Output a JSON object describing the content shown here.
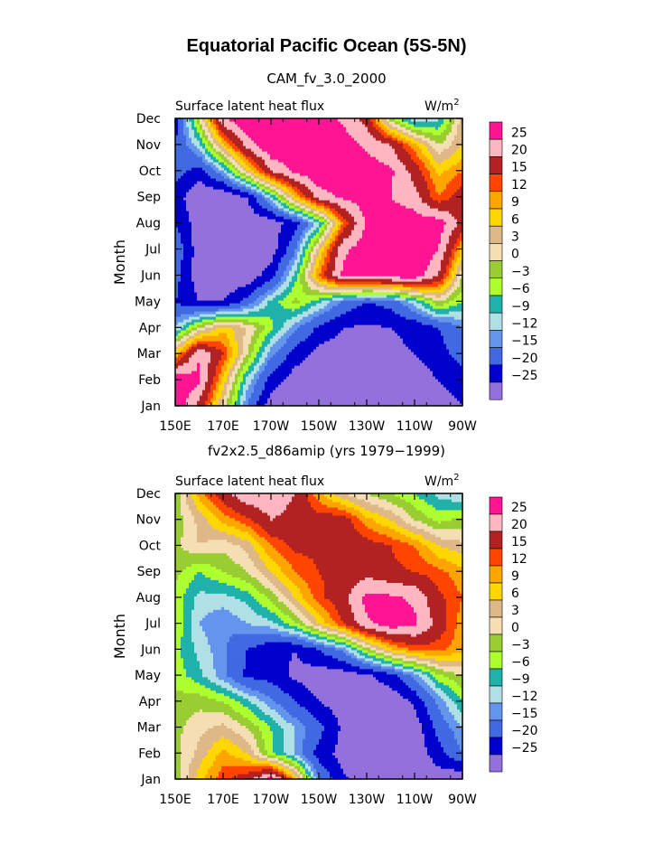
{
  "figure": {
    "title": "Equatorial Pacific Ocean (5S-5N)"
  },
  "chart_data": [
    {
      "type": "heatmap",
      "subtitle": "CAM_fv_3.0_2000",
      "title": "Surface latent heat flux",
      "units": "W/m",
      "units_superscript": "2",
      "ylabel": "Month",
      "xlabel": "",
      "x_ticks": [
        "150E",
        "170E",
        "170W",
        "150W",
        "130W",
        "110W",
        "90W"
      ],
      "y_ticks": [
        "Jan",
        "Feb",
        "Mar",
        "Apr",
        "May",
        "Jun",
        "Jul",
        "Aug",
        "Sep",
        "Oct",
        "Nov",
        "Dec"
      ],
      "xlim": [
        "150E",
        "90W"
      ],
      "ylim": [
        "Jan",
        "Dec"
      ],
      "legend_levels": [
        "25",
        "20",
        "15",
        "12",
        "9",
        "6",
        "3",
        "0",
        "−3",
        "−6",
        "−9",
        "−12",
        "−15",
        "−20",
        "−25"
      ],
      "field": {
        "x": [
          "150E",
          "160E",
          "170E",
          "180",
          "170W",
          "160W",
          "150W",
          "140W",
          "130W",
          "120W",
          "110W",
          "100W",
          "90W"
        ],
        "months": [
          "Jan",
          "Feb",
          "Mar",
          "Apr",
          "May",
          "Jun",
          "Jul",
          "Aug",
          "Sep",
          "Oct",
          "Nov",
          "Dec"
        ],
        "z": [
          [
            30,
            18,
            2,
            -15,
            -28,
            -32,
            -33,
            -32,
            -31,
            -30,
            -30,
            -28,
            -25
          ],
          [
            30,
            26,
            8,
            -10,
            -22,
            -28,
            -30,
            -30,
            -29,
            -28,
            -28,
            -25,
            -22
          ],
          [
            8,
            25,
            15,
            0,
            -14,
            -22,
            -27,
            -28,
            -27,
            -26,
            -25,
            -22,
            -18
          ],
          [
            -12,
            0,
            8,
            3,
            -5,
            -14,
            -21,
            -25,
            -26,
            -25,
            -24,
            -20,
            -15
          ],
          [
            -20,
            -25,
            -25,
            -18,
            -8,
            -2,
            -8,
            -16,
            -20,
            -18,
            -10,
            0,
            -6
          ],
          [
            -18,
            -28,
            -30,
            -29,
            -22,
            -8,
            12,
            26,
            28,
            28,
            28,
            20,
            0
          ],
          [
            -16,
            -28,
            -31,
            -30,
            -28,
            -16,
            5,
            24,
            28,
            30,
            30,
            25,
            8
          ],
          [
            -20,
            -28,
            -30,
            -29,
            -28,
            -22,
            -10,
            12,
            26,
            28,
            28,
            28,
            18
          ],
          [
            -22,
            -30,
            -30,
            -25,
            -10,
            8,
            22,
            26,
            28,
            25,
            22,
            12,
            18
          ],
          [
            -18,
            -22,
            -12,
            5,
            20,
            26,
            30,
            30,
            28,
            26,
            18,
            8,
            12
          ],
          [
            -20,
            -10,
            8,
            22,
            30,
            30,
            30,
            28,
            24,
            20,
            10,
            0,
            6
          ],
          [
            -22,
            0,
            24,
            30,
            30,
            30,
            28,
            24,
            18,
            -2,
            -12,
            -10,
            5
          ]
        ]
      }
    },
    {
      "type": "heatmap",
      "subtitle": "fv2x2.5_d86amip (yrs 1979−1999)",
      "title": "Surface latent heat flux",
      "units": "W/m",
      "units_superscript": "2",
      "ylabel": "Month",
      "xlabel": "",
      "x_ticks": [
        "150E",
        "170E",
        "170W",
        "150W",
        "130W",
        "110W",
        "90W"
      ],
      "y_ticks": [
        "Jan",
        "Feb",
        "Mar",
        "Apr",
        "May",
        "Jun",
        "Jul",
        "Aug",
        "Sep",
        "Oct",
        "Nov",
        "Dec"
      ],
      "xlim": [
        "150E",
        "90W"
      ],
      "ylim": [
        "Jan",
        "Dec"
      ],
      "legend_levels": [
        "25",
        "20",
        "15",
        "12",
        "9",
        "6",
        "3",
        "0",
        "−3",
        "−6",
        "−9",
        "−12",
        "−15",
        "−20",
        "−25"
      ],
      "field": {
        "x": [
          "150E",
          "160E",
          "170E",
          "180",
          "170W",
          "160W",
          "150W",
          "140W",
          "130W",
          "120W",
          "110W",
          "100W",
          "90W"
        ],
        "months": [
          "Jan",
          "Feb",
          "Mar",
          "Apr",
          "May",
          "Jun",
          "Jul",
          "Aug",
          "Sep",
          "Oct",
          "Nov",
          "Dec"
        ],
        "z": [
          [
            -2,
            8,
            14,
            18,
            28,
            10,
            -15,
            -24,
            -27,
            -29,
            -30,
            -28,
            -30
          ],
          [
            -1,
            4,
            10,
            6,
            -5,
            -12,
            -22,
            -27,
            -30,
            -30,
            -29,
            -22,
            -15
          ],
          [
            -1,
            2,
            4,
            0,
            -6,
            -12,
            -18,
            -26,
            -28,
            -30,
            -28,
            -18,
            -12
          ],
          [
            -2,
            -1,
            -3,
            -8,
            -14,
            -20,
            -25,
            -28,
            -29,
            -29,
            -24,
            -14,
            -6
          ],
          [
            -4,
            -8,
            -14,
            -21,
            -22,
            -26,
            -28,
            -28,
            -26,
            -22,
            -14,
            -4,
            0
          ],
          [
            -5,
            -10,
            -14,
            -20,
            -24,
            -25,
            -20,
            -14,
            -2,
            8,
            13,
            13,
            10
          ],
          [
            -3,
            -12,
            -15,
            -12,
            -10,
            -4,
            6,
            15,
            24,
            28,
            26,
            18,
            10
          ],
          [
            -4,
            -10,
            -10,
            -8,
            -2,
            6,
            14,
            18,
            27,
            26,
            24,
            16,
            12
          ],
          [
            -2,
            -6,
            -3,
            0,
            6,
            12,
            15,
            16,
            18,
            16,
            15,
            13,
            10
          ],
          [
            -1,
            3,
            1,
            4,
            12,
            16,
            16,
            18,
            17,
            15,
            12,
            6,
            4
          ],
          [
            -2,
            4,
            10,
            14,
            20,
            18,
            17,
            18,
            10,
            6,
            0,
            -4,
            -2
          ],
          [
            -2,
            10,
            18,
            24,
            24,
            20,
            10,
            3,
            0,
            -3,
            -6,
            -10,
            -12
          ]
        ]
      }
    }
  ],
  "colors": {
    "palette": [
      "#9370db",
      "#0000cd",
      "#4169e1",
      "#6495ed",
      "#b0e0e6",
      "#20b2aa",
      "#adff2f",
      "#9acd32",
      "#f5deb3",
      "#deb887",
      "#ffd700",
      "#ffa500",
      "#ff4500",
      "#b22222",
      "#ffb6c1",
      "#ff1493"
    ]
  }
}
